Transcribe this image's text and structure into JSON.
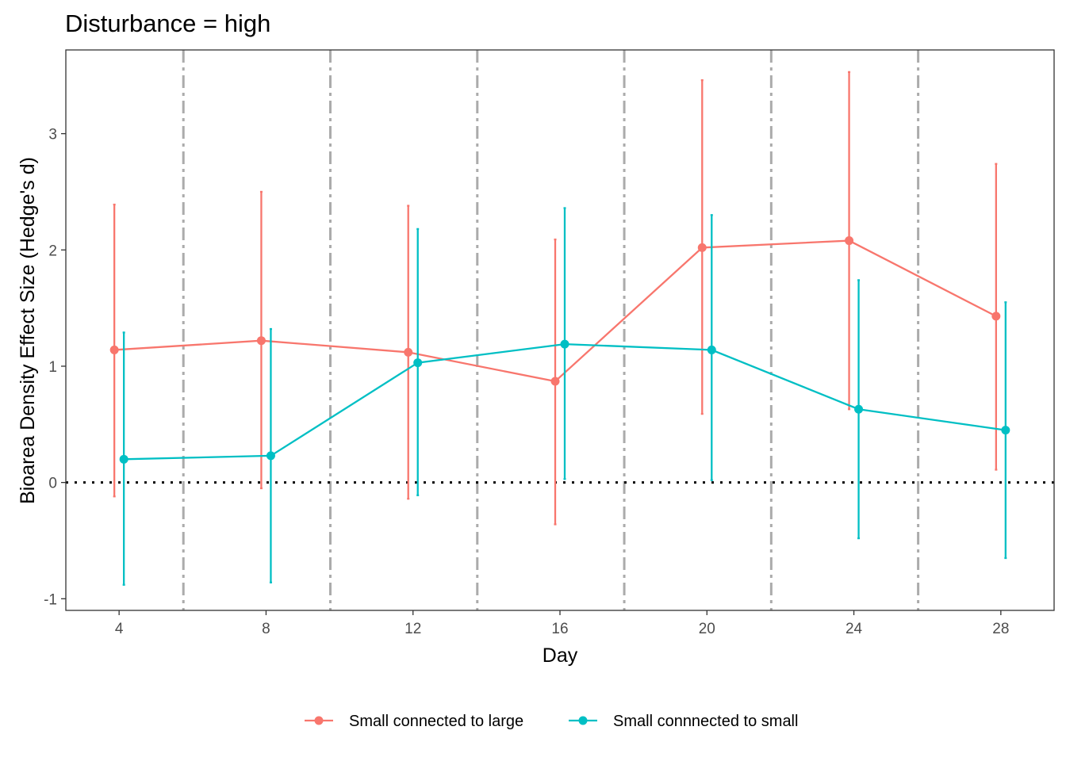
{
  "chart_data": {
    "type": "line",
    "title": "Disturbance = high",
    "xlabel": "Day",
    "ylabel": "Bioarea Density Effect Size (Hedge's d)",
    "x_ticks": [
      4,
      8,
      12,
      16,
      20,
      24,
      28
    ],
    "y_ticks": [
      -1,
      0,
      1,
      2,
      3
    ],
    "xlim": [
      2.55,
      29.45
    ],
    "ylim": [
      -1.1,
      3.72
    ],
    "grid": false,
    "reference_lines": {
      "horizontal_dotted": [
        0
      ],
      "vertical_dashed": [
        5.75,
        9.75,
        13.75,
        17.75,
        21.75,
        25.75
      ]
    },
    "legend_position": "bottom",
    "series": [
      {
        "name": "Small connected to large",
        "color": "#F8766D",
        "x": [
          4,
          8,
          12,
          16,
          20,
          24,
          28
        ],
        "y": [
          1.14,
          1.22,
          1.12,
          0.87,
          2.02,
          2.08,
          1.43
        ],
        "ymin": [
          -0.12,
          -0.05,
          -0.14,
          -0.36,
          0.59,
          0.63,
          0.11
        ],
        "ymax": [
          2.39,
          2.5,
          2.38,
          2.09,
          3.46,
          3.53,
          2.74
        ]
      },
      {
        "name": "Small connnected to small",
        "color": "#00BFC4",
        "x": [
          4,
          8,
          12,
          16,
          20,
          24,
          28
        ],
        "y": [
          0.2,
          0.23,
          1.03,
          1.19,
          1.14,
          0.63,
          0.45
        ],
        "ymin": [
          -0.88,
          -0.86,
          -0.11,
          0.03,
          0.02,
          -0.48,
          -0.65
        ],
        "ymax": [
          1.29,
          1.32,
          2.18,
          2.36,
          2.3,
          1.74,
          1.55
        ]
      }
    ]
  }
}
